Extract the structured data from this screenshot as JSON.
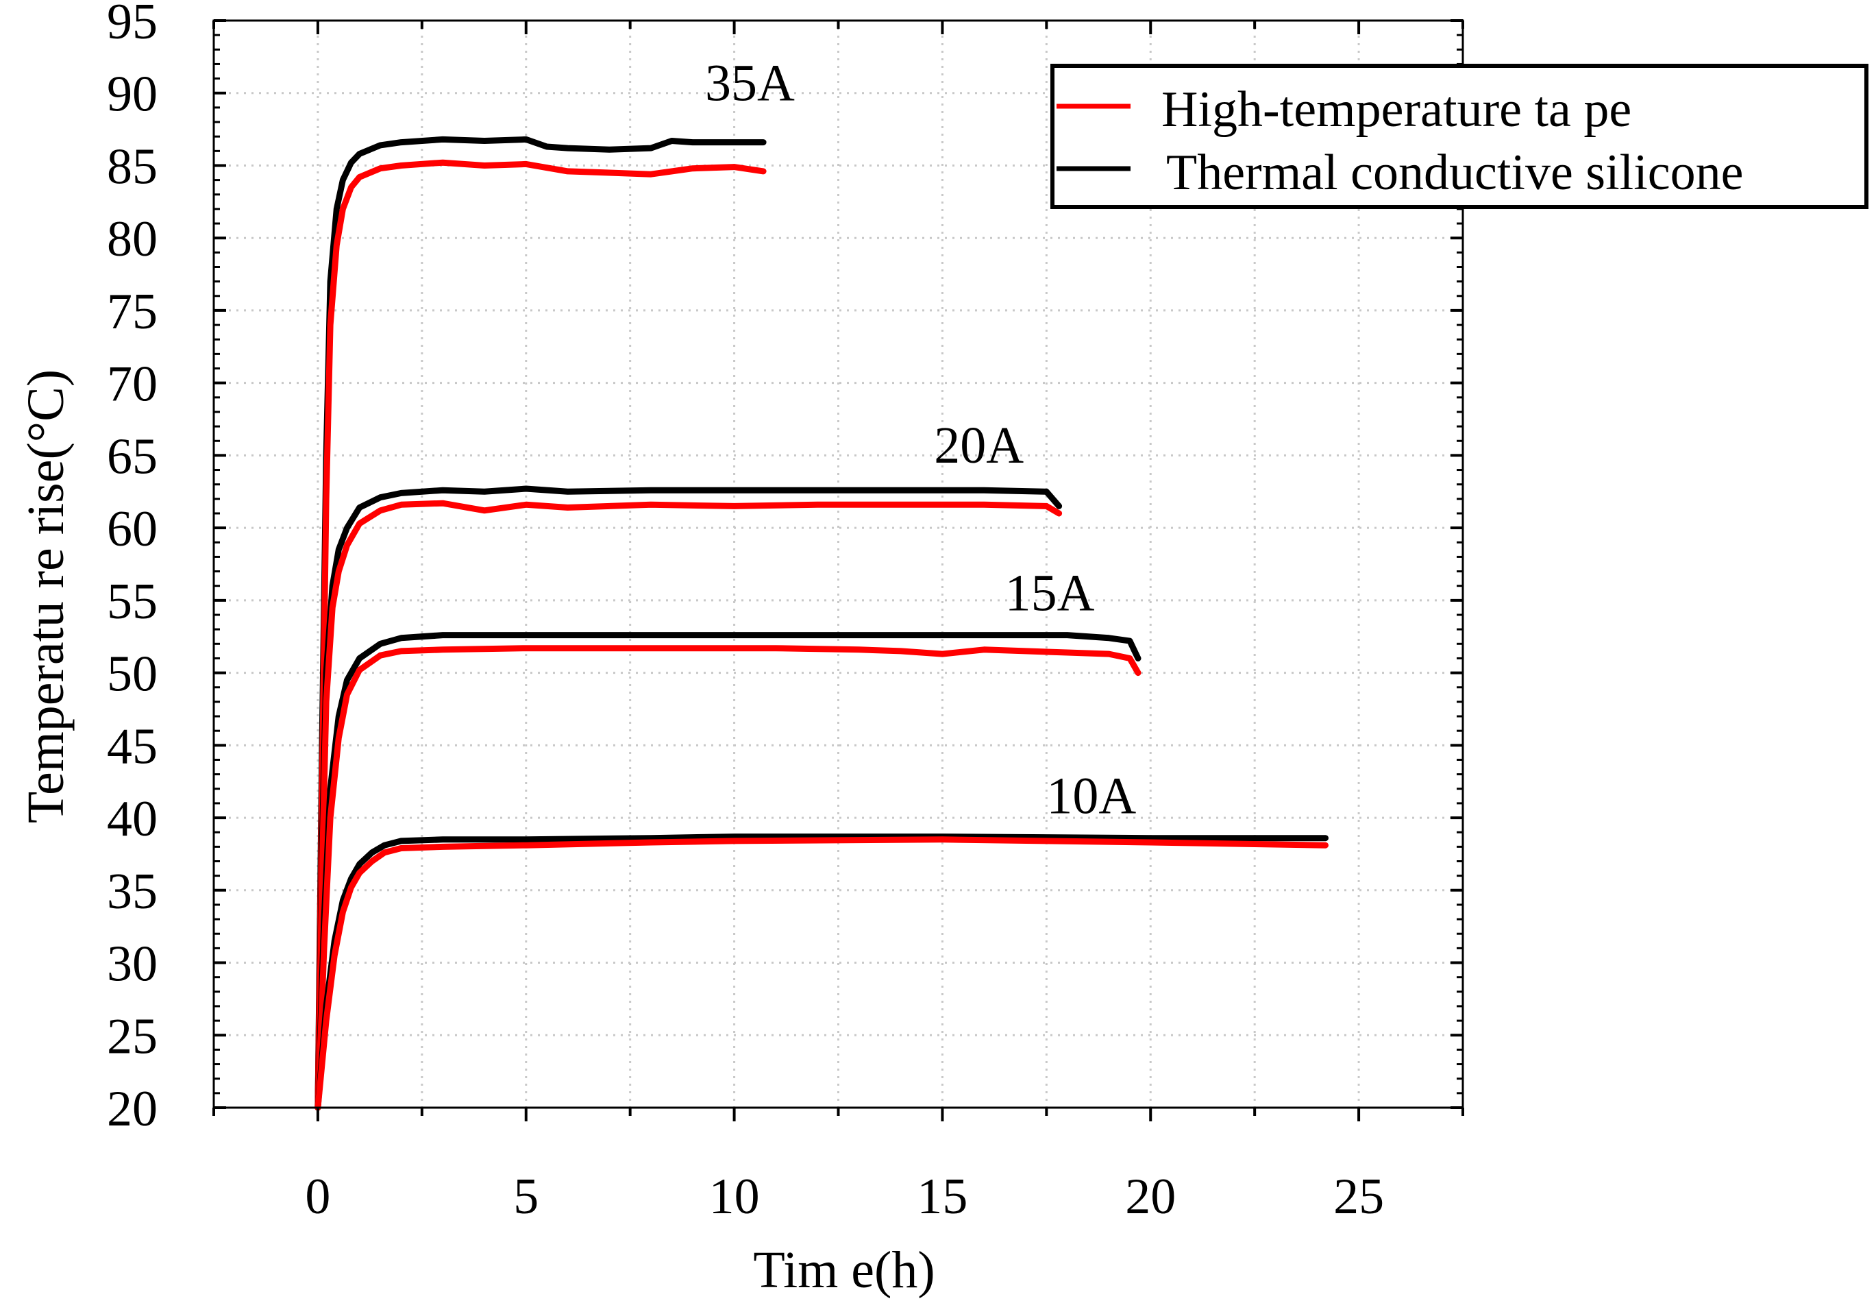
{
  "chart_data": {
    "type": "line",
    "title": "",
    "xlabel": "Tim e(h)",
    "ylabel": "Temperatu re rise(°C)",
    "xlim": [
      -2.5,
      27.5
    ],
    "ylim": [
      20,
      95
    ],
    "xticks": [
      0,
      5,
      10,
      15,
      20,
      25
    ],
    "xtick_labels": [
      "0",
      "5",
      "10",
      "15",
      "20",
      "25"
    ],
    "yticks": [
      20,
      25,
      30,
      35,
      40,
      45,
      50,
      55,
      60,
      65,
      70,
      75,
      80,
      85,
      90,
      95
    ],
    "ytick_labels": [
      "20",
      "25",
      "30",
      "35",
      "40",
      "45",
      "50",
      "55",
      "60",
      "65",
      "70",
      "75",
      "80",
      "85",
      "90",
      "95"
    ],
    "grid": true,
    "legend": {
      "position": "top-right",
      "entries": [
        {
          "name": "High-temperature ta pe",
          "color": "#ff0000"
        },
        {
          "name": "Thermal conductive silicone",
          "color": "#000000"
        }
      ]
    },
    "annotations": [
      {
        "text": "35A",
        "x": 9.3,
        "y": 89.5
      },
      {
        "text": "20A",
        "x": 14.8,
        "y": 64.5
      },
      {
        "text": "15A",
        "x": 16.5,
        "y": 54.3
      },
      {
        "text": "10A",
        "x": 17.5,
        "y": 40.3
      }
    ],
    "series": [
      {
        "name": "Thermal conductive silicone",
        "current": "35A",
        "color": "#000000",
        "x": [
          0,
          0.1,
          0.2,
          0.3,
          0.45,
          0.6,
          0.8,
          1.0,
          1.5,
          2.0,
          3.0,
          4.0,
          5.0,
          5.5,
          6.0,
          7.0,
          8.0,
          8.5,
          9.0,
          10.0,
          10.7
        ],
        "y": [
          20,
          45,
          65,
          77,
          82,
          84,
          85.2,
          85.8,
          86.4,
          86.6,
          86.8,
          86.7,
          86.8,
          86.3,
          86.2,
          86.1,
          86.2,
          86.7,
          86.6,
          86.6,
          86.6
        ]
      },
      {
        "name": "High-temperature ta pe",
        "current": "35A",
        "color": "#ff0000",
        "x": [
          0,
          0.1,
          0.2,
          0.3,
          0.45,
          0.6,
          0.8,
          1.0,
          1.5,
          2.0,
          3.0,
          4.0,
          5.0,
          6.0,
          7.0,
          8.0,
          9.0,
          10.0,
          10.7
        ],
        "y": [
          20,
          42,
          62,
          74,
          79.5,
          82,
          83.5,
          84.2,
          84.8,
          85,
          85.2,
          85,
          85.1,
          84.6,
          84.5,
          84.4,
          84.8,
          84.9,
          84.6
        ]
      },
      {
        "name": "Thermal conductive silicone",
        "current": "20A",
        "color": "#000000",
        "x": [
          0,
          0.1,
          0.2,
          0.35,
          0.5,
          0.7,
          1.0,
          1.5,
          2.0,
          3.0,
          4.0,
          5.0,
          6.0,
          8.0,
          10.0,
          12.0,
          14.0,
          16.0,
          17.5,
          17.8
        ],
        "y": [
          20,
          38,
          50,
          56,
          58.5,
          60,
          61.4,
          62.1,
          62.4,
          62.6,
          62.5,
          62.7,
          62.5,
          62.6,
          62.6,
          62.6,
          62.6,
          62.6,
          62.5,
          61.5
        ]
      },
      {
        "name": "High-temperature ta pe",
        "current": "20A",
        "color": "#ff0000",
        "x": [
          0,
          0.1,
          0.2,
          0.35,
          0.5,
          0.7,
          1.0,
          1.5,
          2.0,
          3.0,
          4.0,
          5.0,
          6.0,
          8.0,
          10.0,
          12.0,
          14.0,
          16.0,
          17.5,
          17.8
        ],
        "y": [
          20,
          36,
          48,
          54.5,
          57,
          58.8,
          60.3,
          61.2,
          61.6,
          61.7,
          61.2,
          61.6,
          61.4,
          61.6,
          61.5,
          61.6,
          61.6,
          61.6,
          61.5,
          61
        ]
      },
      {
        "name": "Thermal conductive silicone",
        "current": "15A",
        "color": "#000000",
        "x": [
          0,
          0.15,
          0.3,
          0.5,
          0.7,
          1.0,
          1.5,
          2.0,
          3.0,
          5.0,
          8.0,
          11.0,
          13.0,
          14.0,
          15.0,
          16.0,
          18.0,
          19.0,
          19.5,
          19.7
        ],
        "y": [
          20,
          33,
          42,
          47,
          49.5,
          51,
          52,
          52.4,
          52.6,
          52.6,
          52.6,
          52.6,
          52.6,
          52.6,
          52.6,
          52.6,
          52.6,
          52.4,
          52.2,
          51
        ]
      },
      {
        "name": "High-temperature ta pe",
        "current": "15A",
        "color": "#ff0000",
        "x": [
          0,
          0.15,
          0.3,
          0.5,
          0.7,
          1.0,
          1.5,
          2.0,
          3.0,
          5.0,
          8.0,
          11.0,
          13.0,
          14.0,
          15.0,
          16.0,
          18.0,
          19.0,
          19.5,
          19.7
        ],
        "y": [
          20,
          31,
          40,
          45.5,
          48.5,
          50.2,
          51.2,
          51.5,
          51.6,
          51.7,
          51.7,
          51.7,
          51.6,
          51.5,
          51.3,
          51.6,
          51.4,
          51.3,
          51,
          50
        ]
      },
      {
        "name": "Thermal conductive silicone",
        "current": "10A",
        "color": "#000000",
        "x": [
          0,
          0.2,
          0.4,
          0.6,
          0.8,
          1.0,
          1.3,
          1.6,
          2.0,
          3.0,
          5.0,
          8.0,
          10.0,
          15.0,
          20.0,
          24.2
        ],
        "y": [
          20,
          27,
          31.5,
          34.3,
          35.8,
          36.8,
          37.6,
          38.1,
          38.4,
          38.5,
          38.5,
          38.6,
          38.7,
          38.7,
          38.6,
          38.6
        ]
      },
      {
        "name": "High-temperature ta pe",
        "current": "10A",
        "color": "#ff0000",
        "x": [
          0,
          0.2,
          0.4,
          0.6,
          0.8,
          1.0,
          1.3,
          1.6,
          2.0,
          3.0,
          5.0,
          8.0,
          10.0,
          15.0,
          20.0,
          24.2
        ],
        "y": [
          20,
          26,
          30.5,
          33.5,
          35.2,
          36.2,
          37,
          37.6,
          37.9,
          38,
          38.1,
          38.3,
          38.4,
          38.5,
          38.3,
          38.1
        ]
      }
    ]
  }
}
